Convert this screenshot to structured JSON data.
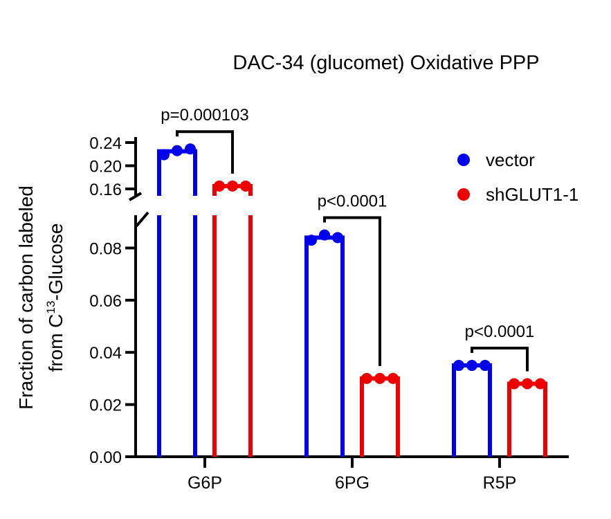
{
  "chart_data": {
    "type": "bar",
    "title": "DAC-34 (glucomet) Oxidative PPP",
    "ylabel_line1": "Fraction of carbon labeled",
    "ylabel_line2_prefix": "from C",
    "ylabel_superscript": "13",
    "ylabel_line2_suffix": "-Glucose",
    "categories": [
      "G6P",
      "6PG",
      "R5P"
    ],
    "y_axis": {
      "broken": true,
      "lower_segment": {
        "range": [
          0,
          0.09
        ],
        "ticks": [
          "0.00",
          "0.02",
          "0.04",
          "0.06",
          "0.08"
        ]
      },
      "upper_segment": {
        "range": [
          0.16,
          0.24
        ],
        "ticks": [
          "0.16",
          "0.20",
          "0.24"
        ]
      }
    },
    "series": [
      {
        "name": "vector",
        "color": "#0000ee",
        "values": [
          0.225,
          0.084,
          0.035
        ],
        "points": [
          [
            0.219,
            0.226,
            0.229
          ],
          [
            0.083,
            0.085,
            0.084
          ],
          [
            0.035,
            0.035,
            0.035
          ]
        ]
      },
      {
        "name": "shGLUT1-1",
        "color": "#ee0000",
        "values": [
          0.165,
          0.03,
          0.028
        ],
        "points": [
          [
            0.165,
            0.165,
            0.165
          ],
          [
            0.03,
            0.03,
            0.03
          ],
          [
            0.028,
            0.028,
            0.028
          ]
        ]
      }
    ],
    "annotations": [
      {
        "category": "G6P",
        "label": "p=0.000103"
      },
      {
        "category": "6PG",
        "label": "p<0.0001"
      },
      {
        "category": "R5P",
        "label": "p<0.0001"
      }
    ],
    "legend_position": "top-right",
    "grid": false
  }
}
